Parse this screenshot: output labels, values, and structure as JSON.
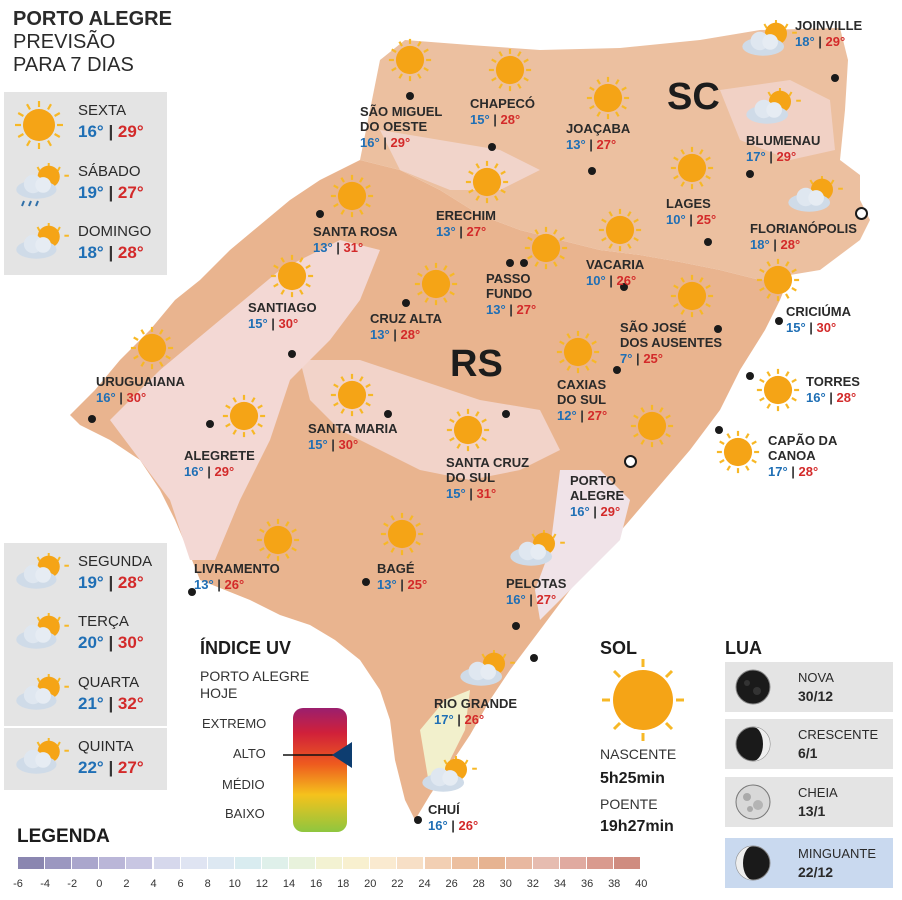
{
  "header": {
    "line1": "PORTO ALEGRE",
    "line2": "PREVISÃO",
    "line3": "PARA 7 DIAS"
  },
  "forecast": [
    {
      "day": "SEXTA",
      "min": "16°",
      "max": "29°",
      "icon": "sun-icon"
    },
    {
      "day": "SÁBADO",
      "min": "19°",
      "max": "27°",
      "icon": "sun-cloud-rain-icon"
    },
    {
      "day": "DOMINGO",
      "min": "18°",
      "max": "28°",
      "icon": "sun-cloud-icon"
    },
    {
      "day": "SEGUNDA",
      "min": "19°",
      "max": "28°",
      "icon": "sun-cloud-icon"
    },
    {
      "day": "TERÇA",
      "min": "20°",
      "max": "30°",
      "icon": "sun-cloud-icon"
    },
    {
      "day": "QUARTA",
      "min": "21°",
      "max": "32°",
      "icon": "sun-cloud-icon"
    },
    {
      "day": "QUINTA",
      "min": "22°",
      "max": "27°",
      "icon": "sun-cloud-icon"
    }
  ],
  "regions": {
    "sc": "SC",
    "rs": "RS"
  },
  "cities": [
    {
      "name": "JOINVILLE",
      "min": "18°",
      "max": "29°",
      "icon": "sun-cloud-icon"
    },
    {
      "name": "SÃO MIGUEL",
      "name2": "DO OESTE",
      "min": "16°",
      "max": "29°",
      "icon": "sun-icon"
    },
    {
      "name": "CHAPECÓ",
      "min": "15°",
      "max": "28°",
      "icon": "sun-icon"
    },
    {
      "name": "JOAÇABA",
      "min": "13°",
      "max": "27°",
      "icon": "sun-icon"
    },
    {
      "name": "BLUMENAU",
      "min": "17°",
      "max": "29°",
      "icon": "sun-cloud-icon"
    },
    {
      "name": "SANTA ROSA",
      "min": "13°",
      "max": "31°",
      "icon": "sun-icon"
    },
    {
      "name": "ERECHIM",
      "min": "13°",
      "max": "27°",
      "icon": "sun-icon"
    },
    {
      "name": "LAGES",
      "min": "10°",
      "max": "25°",
      "icon": "sun-icon"
    },
    {
      "name": "FLORIANÓPOLIS",
      "min": "18°",
      "max": "28°",
      "icon": "sun-cloud-icon"
    },
    {
      "name": "PASSO",
      "name2": "FUNDO",
      "min": "13°",
      "max": "27°",
      "icon": "sun-icon"
    },
    {
      "name": "VACARIA",
      "min": "10°",
      "max": "26°",
      "icon": "sun-icon"
    },
    {
      "name": "SANTIAGO",
      "min": "15°",
      "max": "30°",
      "icon": "sun-icon"
    },
    {
      "name": "CRUZ ALTA",
      "min": "13°",
      "max": "28°",
      "icon": "sun-icon"
    },
    {
      "name": "CRICIÚMA",
      "min": "15°",
      "max": "30°",
      "icon": "sun-icon"
    },
    {
      "name": "SÃO JOSÉ",
      "name2": "DOS AUSENTES",
      "min": "7°",
      "max": "25°",
      "icon": "sun-icon"
    },
    {
      "name": "URUGUAIANA",
      "min": "16°",
      "max": "30°",
      "icon": "sun-icon"
    },
    {
      "name": "CAXIAS",
      "name2": "DO SUL",
      "min": "12°",
      "max": "27°",
      "icon": "sun-icon"
    },
    {
      "name": "TORRES",
      "min": "16°",
      "max": "28°",
      "icon": "sun-icon"
    },
    {
      "name": "SANTA MARIA",
      "min": "15°",
      "max": "30°",
      "icon": "sun-icon"
    },
    {
      "name": "ALEGRETE",
      "min": "16°",
      "max": "29°",
      "icon": "sun-icon"
    },
    {
      "name": "CAPÃO DA",
      "name2": "CANOA",
      "min": "17°",
      "max": "28°",
      "icon": "sun-icon"
    },
    {
      "name": "SANTA CRUZ",
      "name2": "DO SUL",
      "min": "15°",
      "max": "31°",
      "icon": "sun-icon"
    },
    {
      "name": "PORTO",
      "name2": "ALEGRE",
      "min": "16°",
      "max": "29°",
      "icon": "sun-icon"
    },
    {
      "name": "LIVRAMENTO",
      "min": "13°",
      "max": "26°",
      "icon": "sun-icon"
    },
    {
      "name": "BAGÉ",
      "min": "13°",
      "max": "25°",
      "icon": "sun-icon"
    },
    {
      "name": "PELOTAS",
      "min": "16°",
      "max": "27°",
      "icon": "sun-cloud-icon"
    },
    {
      "name": "RIO GRANDE",
      "min": "17°",
      "max": "26°",
      "icon": "sun-cloud-icon"
    },
    {
      "name": "CHUÍ",
      "min": "16°",
      "max": "26°",
      "icon": "sun-cloud-icon"
    }
  ],
  "uv": {
    "title": "ÍNDICE UV",
    "subtitle1": "PORTO ALEGRE",
    "subtitle2": "HOJE",
    "levels": [
      "EXTREMO",
      "ALTO",
      "MÉDIO",
      "BAIXO"
    ],
    "current": "ALTO"
  },
  "sun": {
    "title": "SOL",
    "rise_label": "NASCENTE",
    "rise": "5h25min",
    "set_label": "POENTE",
    "set": "19h27min"
  },
  "moon": {
    "title": "LUA",
    "phases": [
      {
        "name": "NOVA",
        "date": "30/12"
      },
      {
        "name": "CRESCENTE",
        "date": "6/1"
      },
      {
        "name": "CHEIA",
        "date": "13/1"
      },
      {
        "name": "MINGUANTE",
        "date": "22/12"
      }
    ],
    "highlight": "MINGUANTE"
  },
  "legend": {
    "title": "LEGENDA",
    "ticks": [
      "-6",
      "-4",
      "-2",
      "0",
      "2",
      "4",
      "6",
      "8",
      "10",
      "12",
      "14",
      "16",
      "18",
      "20",
      "22",
      "24",
      "26",
      "28",
      "30",
      "32",
      "34",
      "36",
      "38",
      "40"
    ],
    "colors": [
      "#8a86b0",
      "#9b97c0",
      "#aaa6cc",
      "#bab6d8",
      "#c8c6e2",
      "#d6d8ec",
      "#dfe4f2",
      "#dde8f2",
      "#d9ecf0",
      "#dff0ea",
      "#e8f2dc",
      "#f3f2d2",
      "#f8f0cf",
      "#faead0",
      "#f7dfc6",
      "#f2cfb3",
      "#ecbf9f",
      "#e6b391",
      "#e8b8a0",
      "#e6bcb0",
      "#e0aaa0",
      "#d99a8e",
      "#cf8c80"
    ]
  },
  "colors": {
    "min_temp": "#1f6fb5",
    "max_temp": "#d32a2a",
    "map_warm": "#e9b48f",
    "map_light": "#f5e2e0",
    "card_bg": "#e4e4e4",
    "moon_highlight": "#c9d9ef"
  }
}
